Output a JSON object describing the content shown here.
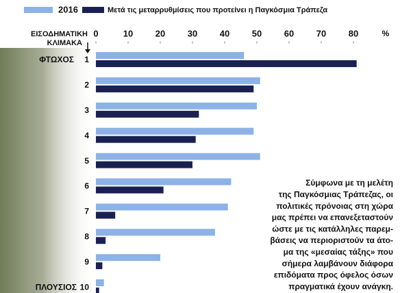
{
  "chart_data": {
    "type": "hbar",
    "series": [
      {
        "name": "2016",
        "color": "#8db2e6",
        "values": [
          46,
          51,
          50,
          49,
          51,
          42,
          41,
          37,
          20,
          2.5
        ]
      },
      {
        "name": "Μετά τις μεταρρυθμίσεις που προτείνει η Παγκόσμια Τράπεζα",
        "color": "#1a2152",
        "values": [
          81,
          49,
          32,
          31,
          30,
          21,
          6,
          3,
          2,
          1
        ]
      }
    ],
    "categories": [
      "1",
      "2",
      "3",
      "4",
      "5",
      "6",
      "7",
      "8",
      "9",
      "10"
    ],
    "y_label": [
      "ΕΙΣΟΔΗΜΑΤΙΚΗ",
      "ΚΛΙΜΑΚΑ"
    ],
    "top_label": "ΦΤΩΧΟΣ",
    "bottom_label": "ΠΛΟΥΣΙΟΣ",
    "x_unit": "%",
    "xlim": [
      0,
      90
    ],
    "xticks": [
      0,
      10,
      20,
      30,
      40,
      50,
      60,
      70,
      80
    ],
    "grid": false,
    "annotation": [
      "Σύμφωνα με τη μελέτη",
      "της Παγκόσμιας Τράπεζας, οι",
      "πολιτικές πρόνοιας στη χώρα",
      "μας πρέπει να επανεξεταστούν",
      "ώστε με τις κατάλληλες παρεμ-",
      "βάσεις να περιοριστούν τα άτο-",
      "μα της «μεσαίας τάξης» που",
      "σήμερα λαμβάνουν διάφορα",
      "επιδόματα προς όφελος όσων",
      "πραγματικά έχουν ανάγκη."
    ]
  }
}
